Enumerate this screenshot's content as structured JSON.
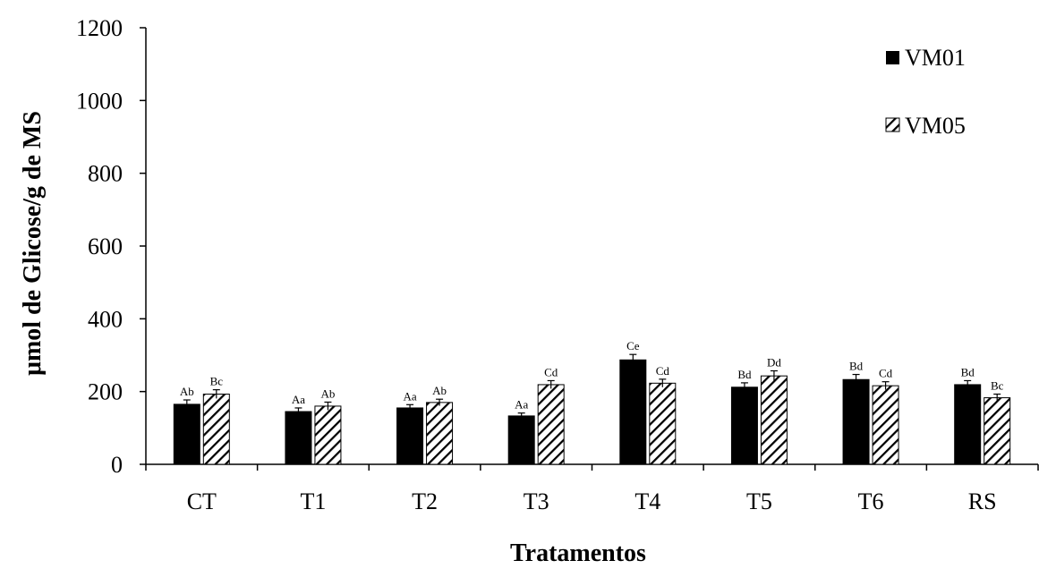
{
  "chart_data": {
    "type": "bar",
    "title": "",
    "xlabel": "Tratamentos",
    "ylabel": "μmol de Glicose/g de MS",
    "ylim": [
      0,
      1200
    ],
    "yticks": [
      0,
      200,
      400,
      600,
      800,
      1000,
      1200
    ],
    "categories": [
      "CT",
      "T1",
      "T2",
      "T3",
      "T4",
      "T5",
      "T6",
      "RS"
    ],
    "series": [
      {
        "name": "VM01",
        "fill": "solid",
        "color": "#000000",
        "values": [
          165,
          145,
          155,
          133,
          287,
          212,
          233,
          219
        ],
        "errors": [
          12,
          10,
          9,
          8,
          15,
          12,
          14,
          11
        ],
        "labels": [
          "Ab",
          "Aa",
          "Aa",
          "Aa",
          "Ce",
          "Bd",
          "Bd",
          "Bd"
        ]
      },
      {
        "name": "VM05",
        "fill": "hatched",
        "color": "#000000",
        "values": [
          193,
          160,
          170,
          219,
          223,
          243,
          216,
          183
        ],
        "errors": [
          12,
          11,
          9,
          11,
          11,
          14,
          11,
          10
        ],
        "labels": [
          "Bc",
          "Ab",
          "Ab",
          "Cd",
          "Cd",
          "Dd",
          "Cd",
          "Bc"
        ]
      }
    ],
    "legend_position": "top-right",
    "grid": false
  }
}
